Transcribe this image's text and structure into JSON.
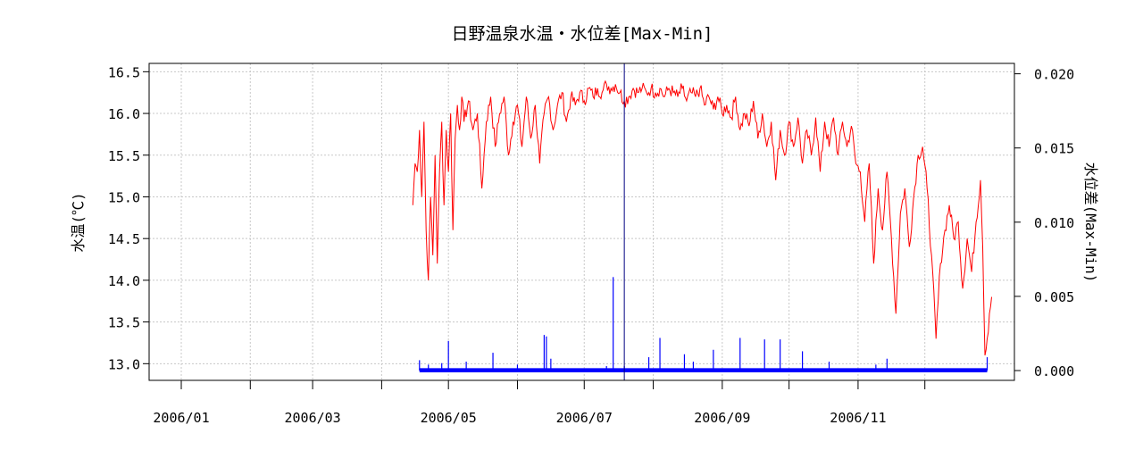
{
  "chart_data": {
    "type": "line",
    "title": "日野温泉水温・水位差[Max-Min]",
    "xlabel": "",
    "ylabel": "水温(℃)",
    "y2label": "水位差(Max-Min)",
    "grid": true,
    "x_range": [
      "2006-01-01",
      "2007-01-01"
    ],
    "ylim": [
      12.8,
      16.6
    ],
    "y2lim": [
      -0.00066,
      0.0207
    ],
    "x_ticks": [
      {
        "date": "2006-01-01",
        "label": "2006/01"
      },
      {
        "date": "2006-02-01",
        "label": ""
      },
      {
        "date": "2006-03-01",
        "label": "2006/03"
      },
      {
        "date": "2006-04-01",
        "label": ""
      },
      {
        "date": "2006-05-01",
        "label": "2006/05"
      },
      {
        "date": "2006-06-01",
        "label": ""
      },
      {
        "date": "2006-07-01",
        "label": "2006/07"
      },
      {
        "date": "2006-08-01",
        "label": ""
      },
      {
        "date": "2006-09-01",
        "label": "2006/09"
      },
      {
        "date": "2006-10-01",
        "label": ""
      },
      {
        "date": "2006-11-01",
        "label": "2006/11"
      },
      {
        "date": "2006-12-01",
        "label": ""
      }
    ],
    "y_ticks": [
      "13.0",
      "13.5",
      "14.0",
      "14.5",
      "15.0",
      "15.5",
      "16.0",
      "16.5"
    ],
    "y2_ticks": [
      "0.000",
      "0.005",
      "0.010",
      "0.015",
      "0.020"
    ],
    "vline_date": "2006-07-19",
    "series": [
      {
        "axis": "left",
        "color": "#ff0000",
        "points": [
          [
            "2006-04-15",
            14.9
          ],
          [
            "2006-04-16",
            15.4
          ],
          [
            "2006-04-17",
            15.3
          ],
          [
            "2006-04-18",
            15.8
          ],
          [
            "2006-04-19",
            15.0
          ],
          [
            "2006-04-20",
            15.9
          ],
          [
            "2006-04-21",
            14.6
          ],
          [
            "2006-04-22",
            14.0
          ],
          [
            "2006-04-23",
            15.0
          ],
          [
            "2006-04-24",
            14.3
          ],
          [
            "2006-04-25",
            15.5
          ],
          [
            "2006-04-26",
            14.2
          ],
          [
            "2006-04-27",
            15.3
          ],
          [
            "2006-04-28",
            15.9
          ],
          [
            "2006-04-29",
            14.9
          ],
          [
            "2006-04-30",
            15.8
          ],
          [
            "2006-05-01",
            15.3
          ],
          [
            "2006-05-02",
            16.0
          ],
          [
            "2006-05-03",
            14.6
          ],
          [
            "2006-05-04",
            15.7
          ],
          [
            "2006-05-05",
            16.1
          ],
          [
            "2006-05-06",
            15.8
          ],
          [
            "2006-05-07",
            16.2
          ],
          [
            "2006-05-08",
            15.9
          ],
          [
            "2006-05-10",
            16.15
          ],
          [
            "2006-05-12",
            15.8
          ],
          [
            "2006-05-14",
            16.0
          ],
          [
            "2006-05-16",
            15.1
          ],
          [
            "2006-05-18",
            15.9
          ],
          [
            "2006-05-20",
            16.2
          ],
          [
            "2006-05-22",
            15.6
          ],
          [
            "2006-05-24",
            16.0
          ],
          [
            "2006-05-26",
            16.2
          ],
          [
            "2006-05-28",
            15.5
          ],
          [
            "2006-05-30",
            15.9
          ],
          [
            "2006-06-01",
            16.1
          ],
          [
            "2006-06-03",
            15.6
          ],
          [
            "2006-06-05",
            16.2
          ],
          [
            "2006-06-07",
            15.7
          ],
          [
            "2006-06-09",
            16.1
          ],
          [
            "2006-06-11",
            15.4
          ],
          [
            "2006-06-13",
            16.0
          ],
          [
            "2006-06-15",
            16.2
          ],
          [
            "2006-06-17",
            15.8
          ],
          [
            "2006-06-19",
            16.1
          ],
          [
            "2006-06-21",
            16.25
          ],
          [
            "2006-06-23",
            15.9
          ],
          [
            "2006-06-25",
            16.2
          ],
          [
            "2006-06-27",
            16.1
          ],
          [
            "2006-06-29",
            16.25
          ],
          [
            "2006-07-01",
            16.15
          ],
          [
            "2006-07-03",
            16.3
          ],
          [
            "2006-07-05",
            16.2
          ],
          [
            "2006-07-07",
            16.3
          ],
          [
            "2006-07-09",
            16.25
          ],
          [
            "2006-07-11",
            16.35
          ],
          [
            "2006-07-13",
            16.3
          ],
          [
            "2006-07-15",
            16.35
          ],
          [
            "2006-07-17",
            16.25
          ],
          [
            "2006-07-19",
            16.15
          ],
          [
            "2006-07-21",
            16.2
          ],
          [
            "2006-07-23",
            16.3
          ],
          [
            "2006-07-25",
            16.25
          ],
          [
            "2006-07-27",
            16.3
          ],
          [
            "2006-07-29",
            16.25
          ],
          [
            "2006-07-31",
            16.3
          ],
          [
            "2006-08-02",
            16.25
          ],
          [
            "2006-08-04",
            16.3
          ],
          [
            "2006-08-06",
            16.2
          ],
          [
            "2006-08-08",
            16.3
          ],
          [
            "2006-08-10",
            16.25
          ],
          [
            "2006-08-12",
            16.2
          ],
          [
            "2006-08-14",
            16.3
          ],
          [
            "2006-08-16",
            16.15
          ],
          [
            "2006-08-18",
            16.25
          ],
          [
            "2006-08-20",
            16.2
          ],
          [
            "2006-08-22",
            16.3
          ],
          [
            "2006-08-24",
            16.1
          ],
          [
            "2006-08-26",
            16.2
          ],
          [
            "2006-08-28",
            16.05
          ],
          [
            "2006-08-30",
            16.2
          ],
          [
            "2006-09-01",
            16.0
          ],
          [
            "2006-09-03",
            16.1
          ],
          [
            "2006-09-05",
            15.95
          ],
          [
            "2006-09-07",
            16.2
          ],
          [
            "2006-09-09",
            15.8
          ],
          [
            "2006-09-11",
            16.0
          ],
          [
            "2006-09-13",
            15.85
          ],
          [
            "2006-09-15",
            16.15
          ],
          [
            "2006-09-17",
            15.7
          ],
          [
            "2006-09-19",
            16.0
          ],
          [
            "2006-09-21",
            15.6
          ],
          [
            "2006-09-23",
            15.9
          ],
          [
            "2006-09-25",
            15.2
          ],
          [
            "2006-09-27",
            15.8
          ],
          [
            "2006-09-29",
            15.5
          ],
          [
            "2006-10-01",
            15.9
          ],
          [
            "2006-10-03",
            15.6
          ],
          [
            "2006-10-05",
            15.95
          ],
          [
            "2006-10-07",
            15.4
          ],
          [
            "2006-10-09",
            15.8
          ],
          [
            "2006-10-11",
            15.5
          ],
          [
            "2006-10-13",
            15.95
          ],
          [
            "2006-10-15",
            15.3
          ],
          [
            "2006-10-17",
            15.9
          ],
          [
            "2006-10-19",
            15.6
          ],
          [
            "2006-10-21",
            15.95
          ],
          [
            "2006-10-23",
            15.5
          ],
          [
            "2006-10-25",
            15.9
          ],
          [
            "2006-10-27",
            15.6
          ],
          [
            "2006-10-29",
            15.85
          ],
          [
            "2006-10-31",
            15.4
          ],
          [
            "2006-11-02",
            15.3
          ],
          [
            "2006-11-04",
            14.7
          ],
          [
            "2006-11-06",
            15.4
          ],
          [
            "2006-11-08",
            14.2
          ],
          [
            "2006-11-10",
            15.1
          ],
          [
            "2006-11-12",
            14.6
          ],
          [
            "2006-11-14",
            15.3
          ],
          [
            "2006-11-16",
            14.5
          ],
          [
            "2006-11-18",
            13.6
          ],
          [
            "2006-11-20",
            14.8
          ],
          [
            "2006-11-22",
            15.1
          ],
          [
            "2006-11-24",
            14.4
          ],
          [
            "2006-11-26",
            15.0
          ],
          [
            "2006-11-28",
            15.5
          ],
          [
            "2006-11-30",
            15.6
          ],
          [
            "2006-12-02",
            15.1
          ],
          [
            "2006-12-04",
            14.3
          ],
          [
            "2006-12-06",
            13.3
          ],
          [
            "2006-12-08",
            14.2
          ],
          [
            "2006-12-10",
            14.6
          ],
          [
            "2006-12-12",
            14.9
          ],
          [
            "2006-12-14",
            14.5
          ],
          [
            "2006-12-16",
            14.7
          ],
          [
            "2006-12-18",
            13.9
          ],
          [
            "2006-12-20",
            14.5
          ],
          [
            "2006-12-22",
            14.1
          ],
          [
            "2006-12-24",
            14.7
          ],
          [
            "2006-12-26",
            15.2
          ],
          [
            "2006-12-27",
            14.4
          ],
          [
            "2006-12-28",
            13.1
          ],
          [
            "2006-12-29",
            13.3
          ],
          [
            "2006-12-30",
            13.6
          ],
          [
            "2006-12-31",
            13.8
          ]
        ]
      },
      {
        "axis": "right",
        "color": "#0000ff",
        "baseline": 0.0001,
        "spikes": [
          [
            "2006-04-18",
            0.0007
          ],
          [
            "2006-04-22",
            0.0004
          ],
          [
            "2006-04-28",
            0.0005
          ],
          [
            "2006-05-01",
            0.002
          ],
          [
            "2006-05-09",
            0.0006
          ],
          [
            "2006-05-21",
            0.0012
          ],
          [
            "2006-06-01",
            0.0004
          ],
          [
            "2006-06-13",
            0.0024
          ],
          [
            "2006-06-14",
            0.0023
          ],
          [
            "2006-06-16",
            0.0008
          ],
          [
            "2006-07-11",
            0.0003
          ],
          [
            "2006-07-14",
            0.0063
          ],
          [
            "2006-07-19",
            0.0003
          ],
          [
            "2006-07-30",
            0.0009
          ],
          [
            "2006-08-04",
            0.0022
          ],
          [
            "2006-08-15",
            0.0011
          ],
          [
            "2006-08-19",
            0.0006
          ],
          [
            "2006-08-28",
            0.0014
          ],
          [
            "2006-09-09",
            0.0022
          ],
          [
            "2006-09-20",
            0.0021
          ],
          [
            "2006-09-27",
            0.0021
          ],
          [
            "2006-10-07",
            0.0013
          ],
          [
            "2006-10-19",
            0.0006
          ],
          [
            "2006-11-09",
            0.0004
          ],
          [
            "2006-11-14",
            0.0008
          ],
          [
            "2006-12-29",
            0.0009
          ]
        ]
      }
    ]
  }
}
